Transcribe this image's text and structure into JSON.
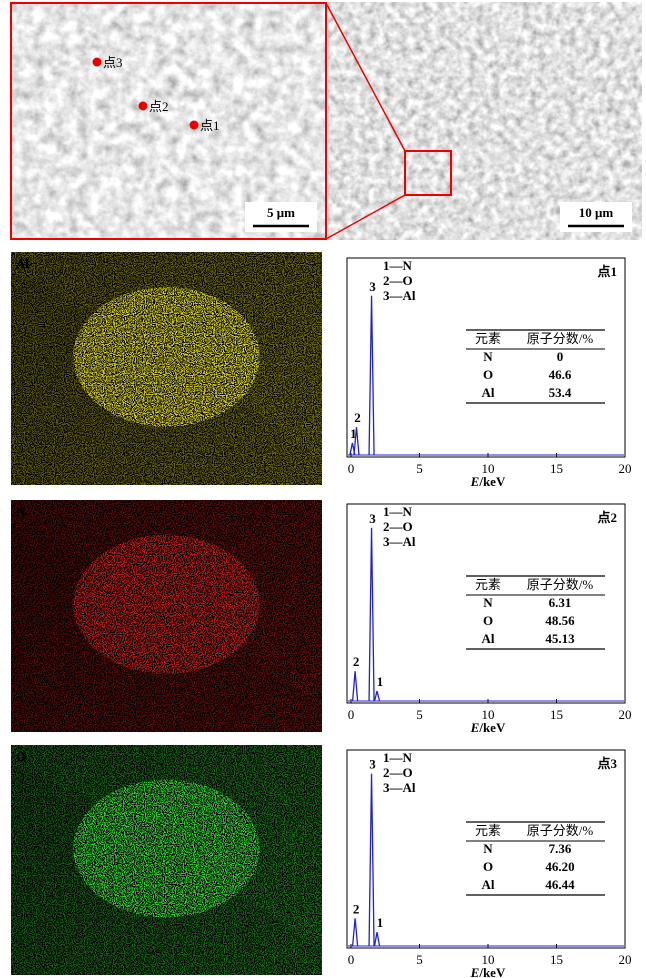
{
  "sem": {
    "points": [
      "点1",
      "点2",
      "点3"
    ],
    "scale_left": "5 μm",
    "scale_right": "10 μm"
  },
  "panels": [
    {
      "map_label": "Al",
      "spectrum": {
        "point": "点1",
        "legend": [
          "1—N",
          "2—O",
          "3—Al"
        ],
        "peaks": [
          {
            "label": "1",
            "x": 0.1,
            "height": 0.06
          },
          {
            "label": "2",
            "x": 0.4,
            "height": 0.14
          },
          {
            "label": "3",
            "x": 1.5,
            "height": 0.8
          }
        ],
        "table": {
          "headers": [
            "元素",
            "原子分数/%"
          ],
          "rows": [
            [
              "N",
              "0"
            ],
            [
              "O",
              "46.6"
            ],
            [
              "Al",
              "53.4"
            ]
          ]
        },
        "xlim": [
          0,
          20
        ],
        "xticks": [
          0,
          5,
          10,
          15,
          20
        ],
        "x_label": {
          "var": "E",
          "unit": "/keV"
        }
      }
    },
    {
      "map_label": "N",
      "spectrum": {
        "point": "点2",
        "legend": [
          "1—N",
          "2—O",
          "3—Al"
        ],
        "peaks": [
          {
            "label": "2",
            "x": 0.3,
            "height": 0.15
          },
          {
            "label": "3",
            "x": 1.5,
            "height": 0.87
          },
          {
            "label": "1",
            "x": 1.9,
            "height": 0.05
          }
        ],
        "table": {
          "headers": [
            "元素",
            "原子分数/%"
          ],
          "rows": [
            [
              "N",
              "6.31"
            ],
            [
              "O",
              "48.56"
            ],
            [
              "Al",
              "45.13"
            ]
          ]
        },
        "xlim": [
          0,
          20
        ],
        "xticks": [
          0,
          5,
          10,
          15,
          20
        ],
        "x_label": {
          "var": "E",
          "unit": "/keV"
        }
      }
    },
    {
      "map_label": "O",
      "spectrum": {
        "point": "点3",
        "legend": [
          "1—N",
          "2—O",
          "3—Al"
        ],
        "peaks": [
          {
            "label": "2",
            "x": 0.3,
            "height": 0.14
          },
          {
            "label": "3",
            "x": 1.5,
            "height": 0.87
          },
          {
            "label": "1",
            "x": 1.9,
            "height": 0.07
          }
        ],
        "table": {
          "headers": [
            "元素",
            "原子分数/%"
          ],
          "rows": [
            [
              "N",
              "7.36"
            ],
            [
              "O",
              "46.20"
            ],
            [
              "Al",
              "46.44"
            ]
          ]
        },
        "xlim": [
          0,
          20
        ],
        "xticks": [
          0,
          5,
          10,
          15,
          20
        ],
        "x_label": {
          "var": "E",
          "unit": "/keV"
        }
      }
    }
  ]
}
